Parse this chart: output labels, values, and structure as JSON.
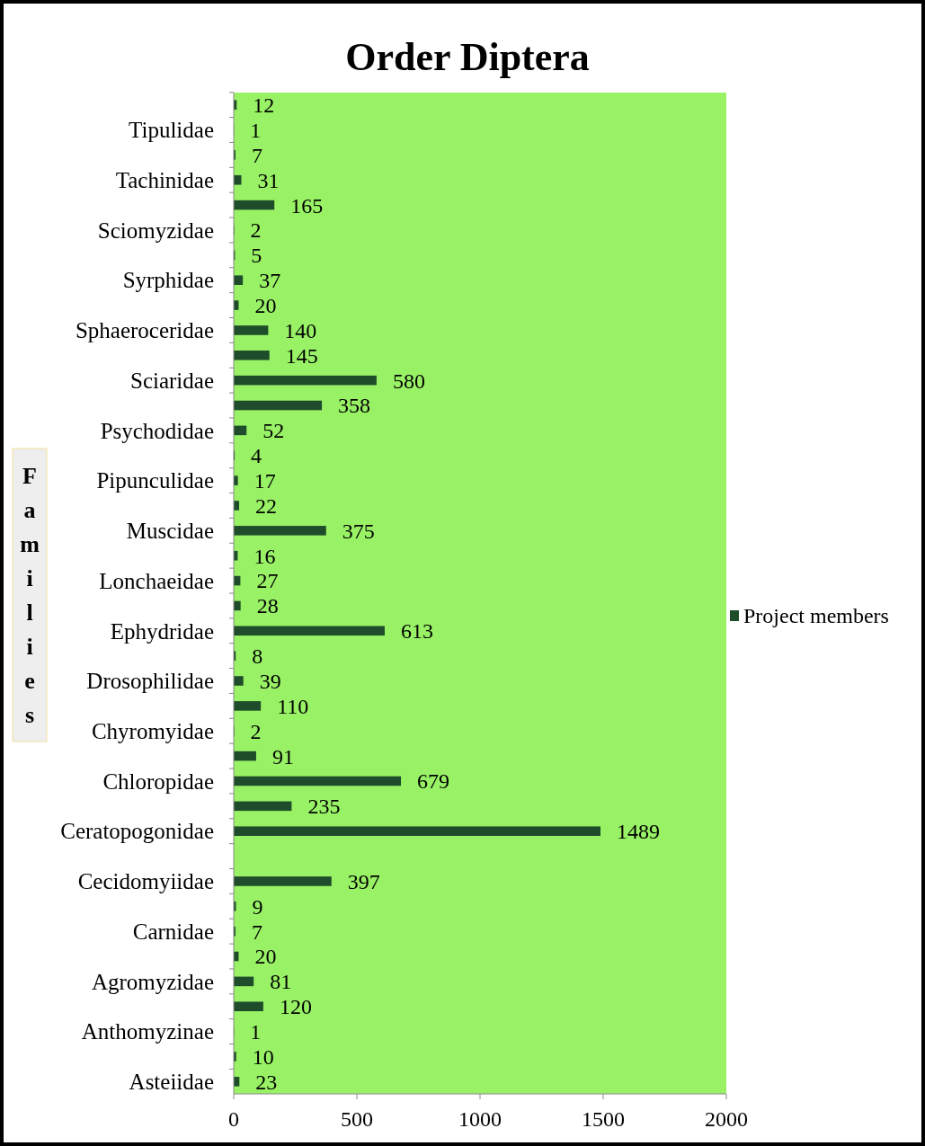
{
  "chart_data": {
    "type": "bar",
    "orientation": "horizontal",
    "title": "Order Diptera",
    "ylabel": "Families",
    "categories": [
      null,
      "Tipulidae",
      null,
      "Tachinidae",
      null,
      "Sciomyzidae",
      null,
      "Syrphidae",
      null,
      "Sphaeroceridae",
      null,
      "Sciaridae",
      null,
      "Psychodidae",
      null,
      "Pipunculidae",
      null,
      "Muscidae",
      null,
      "Lonchaeidae",
      null,
      "Ephydridae",
      null,
      "Drosophilidae",
      null,
      "Chyromyidae",
      null,
      "Chloropidae",
      null,
      "Ceratopogonidae",
      null,
      "Cecidomyiidae",
      null,
      "Carnidae",
      null,
      "Agromyzidae",
      null,
      "Anthomyzinae",
      null,
      "Asteiidae"
    ],
    "series": [
      {
        "name": "Project members",
        "color": "#1f4d2b",
        "values": [
          12,
          1,
          7,
          31,
          165,
          2,
          5,
          37,
          20,
          140,
          145,
          580,
          358,
          52,
          4,
          17,
          22,
          375,
          16,
          27,
          28,
          613,
          8,
          39,
          110,
          2,
          91,
          679,
          235,
          1489,
          null,
          397,
          9,
          7,
          20,
          81,
          120,
          1,
          10,
          23
        ]
      }
    ],
    "xlim": [
      0,
      2000
    ],
    "xticks": [
      0,
      500,
      1000,
      1500,
      2000
    ],
    "data_labels": true,
    "legend": "right"
  }
}
